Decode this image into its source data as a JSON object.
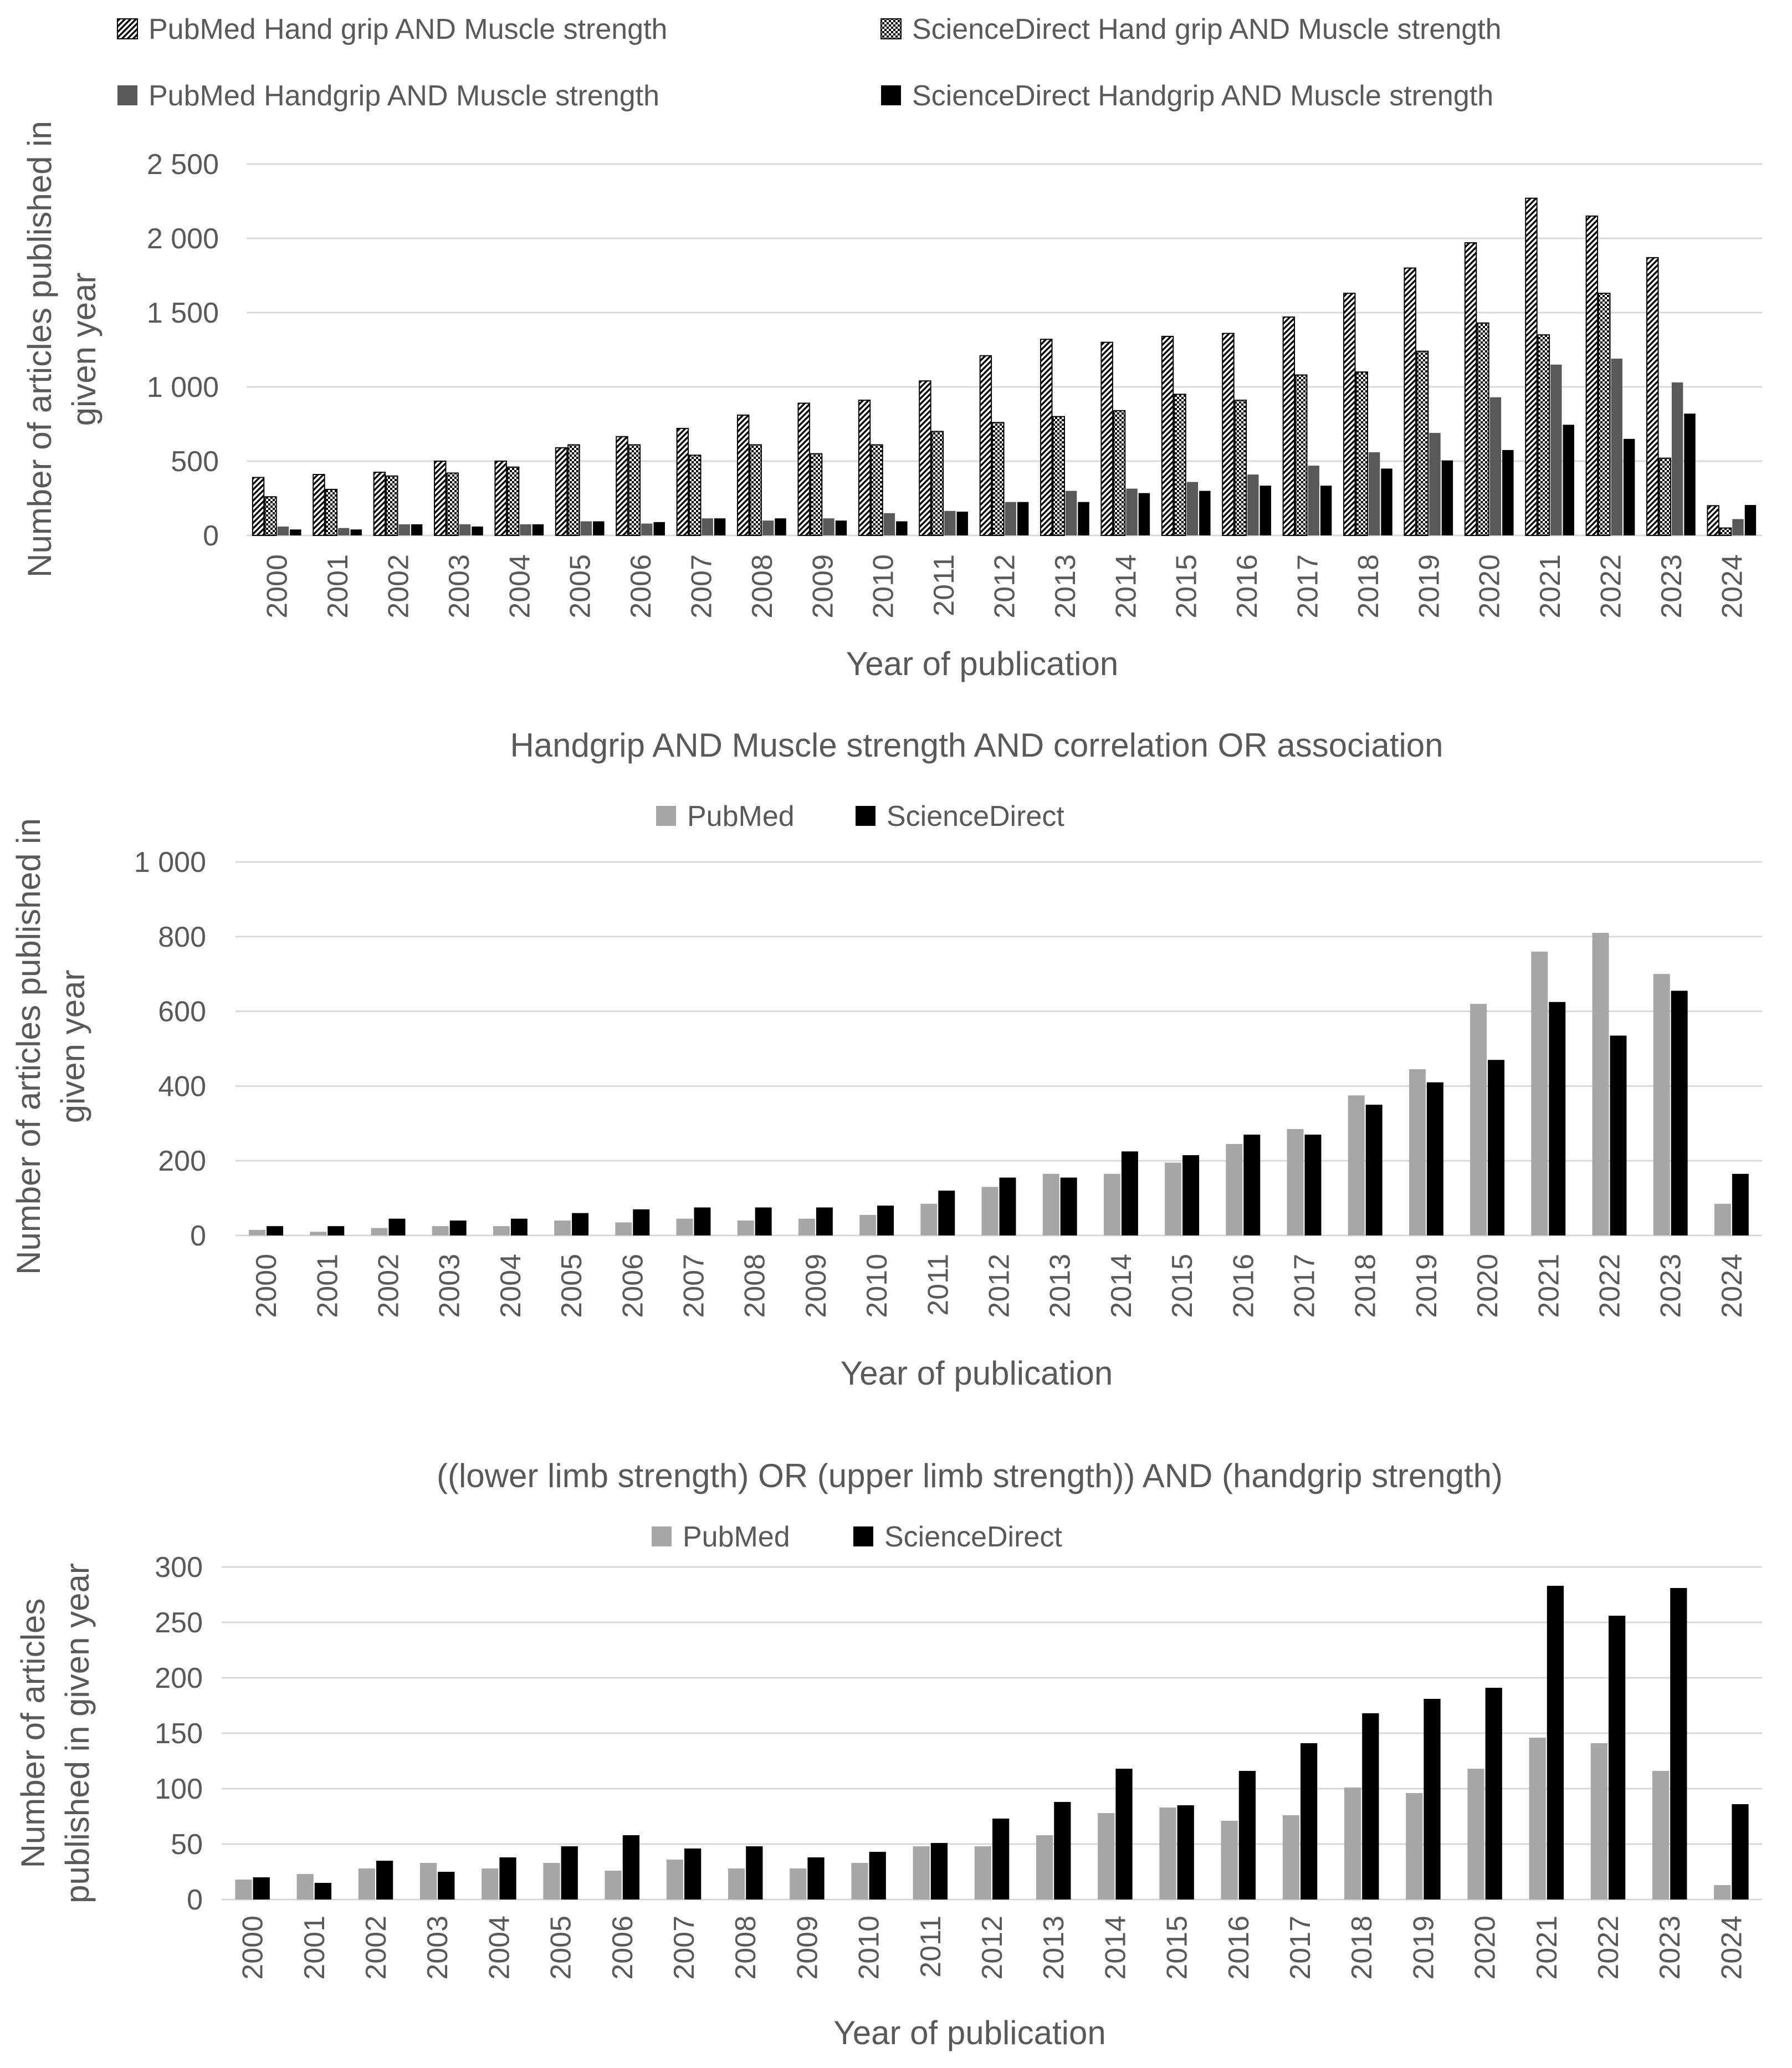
{
  "figure": {
    "colors": {
      "text": "#595959",
      "grid": "#d9d9d9",
      "pubmed_light": "#a6a6a6",
      "pubmed_dark": "#595959",
      "sciencedirect": "#000000"
    }
  },
  "chart_data": [
    {
      "type": "bar",
      "title": "",
      "xlabel": "Year of publication",
      "ylabel": "Number of articles published in given year",
      "ylabel_lines": [
        "Number of articles published in",
        "given year"
      ],
      "ylim": [
        0,
        2500
      ],
      "yticks": [
        0,
        500,
        1000,
        1500,
        2000,
        2500
      ],
      "ytick_labels": [
        "0",
        "500",
        "1 000",
        "1 500",
        "2 000",
        "2 500"
      ],
      "grid": true,
      "legend_position": "top",
      "categories": [
        "2000",
        "2001",
        "2002",
        "2003",
        "2004",
        "2005",
        "2006",
        "2007",
        "2008",
        "2009",
        "2010",
        "2011",
        "2012",
        "2013",
        "2014",
        "2015",
        "2016",
        "2017",
        "2018",
        "2019",
        "2020",
        "2021",
        "2022",
        "2023",
        "2024"
      ],
      "series": [
        {
          "name": "PubMed Hand grip AND Muscle strength",
          "pattern": "diagonal",
          "values": [
            390,
            410,
            425,
            500,
            500,
            590,
            665,
            720,
            810,
            890,
            910,
            1040,
            1210,
            1320,
            1300,
            1340,
            1360,
            1470,
            1630,
            1800,
            1970,
            2270,
            2150,
            1870,
            200
          ]
        },
        {
          "name": "ScienceDirect Hand grip AND Muscle strength",
          "pattern": "checker",
          "values": [
            260,
            310,
            400,
            420,
            460,
            610,
            610,
            540,
            610,
            550,
            610,
            700,
            760,
            800,
            840,
            950,
            910,
            1080,
            1100,
            1240,
            1430,
            1350,
            1630,
            520,
            50
          ]
        },
        {
          "name": "PubMed Handgrip AND Muscle strength",
          "pattern": "solid-gray",
          "values": [
            60,
            50,
            75,
            75,
            75,
            95,
            80,
            115,
            100,
            115,
            150,
            165,
            225,
            300,
            315,
            360,
            410,
            470,
            560,
            690,
            930,
            1150,
            1190,
            1030,
            110
          ]
        },
        {
          "name": "ScienceDirect Handgrip AND Muscle strength",
          "pattern": "solid-black",
          "values": [
            40,
            40,
            75,
            60,
            75,
            95,
            90,
            115,
            115,
            100,
            95,
            160,
            225,
            225,
            285,
            300,
            335,
            335,
            450,
            505,
            575,
            745,
            650,
            820,
            205
          ]
        }
      ]
    },
    {
      "type": "bar",
      "title": "Handgrip AND Muscle strength AND correlation OR association",
      "xlabel": "Year of publication",
      "ylabel": "Number of articles published in given year",
      "ylabel_lines": [
        "Number of articles published in",
        "given year"
      ],
      "ylim": [
        0,
        1000
      ],
      "yticks": [
        0,
        200,
        400,
        600,
        800,
        1000
      ],
      "ytick_labels": [
        "0",
        "200",
        "400",
        "600",
        "800",
        "1 000"
      ],
      "grid": true,
      "legend_position": "top",
      "categories": [
        "2000",
        "2001",
        "2002",
        "2003",
        "2004",
        "2005",
        "2006",
        "2007",
        "2008",
        "2009",
        "2010",
        "2011",
        "2012",
        "2013",
        "2014",
        "2015",
        "2016",
        "2017",
        "2018",
        "2019",
        "2020",
        "2021",
        "2022",
        "2023",
        "2024"
      ],
      "series": [
        {
          "name": "PubMed",
          "pattern": "solid-light",
          "values": [
            15,
            10,
            20,
            25,
            25,
            40,
            35,
            45,
            40,
            45,
            55,
            85,
            130,
            165,
            165,
            195,
            245,
            285,
            375,
            445,
            620,
            760,
            810,
            700,
            85
          ]
        },
        {
          "name": "ScienceDirect",
          "pattern": "solid-black",
          "values": [
            25,
            25,
            45,
            40,
            45,
            60,
            70,
            75,
            75,
            75,
            80,
            120,
            155,
            155,
            225,
            215,
            270,
            270,
            350,
            410,
            470,
            625,
            535,
            655,
            165
          ]
        }
      ]
    },
    {
      "type": "bar",
      "title": "((lower limb strength) OR (upper limb strength)) AND (handgrip strength)",
      "xlabel": "Year of publication",
      "ylabel": "Number of articles published in given year",
      "ylabel_lines": [
        "Number of articles",
        "published in given year"
      ],
      "ylim": [
        0,
        300
      ],
      "yticks": [
        0,
        50,
        100,
        150,
        200,
        250,
        300
      ],
      "ytick_labels": [
        "0",
        "50",
        "100",
        "150",
        "200",
        "250",
        "300"
      ],
      "grid": true,
      "legend_position": "top",
      "categories": [
        "2000",
        "2001",
        "2002",
        "2003",
        "2004",
        "2005",
        "2006",
        "2007",
        "2008",
        "2009",
        "2010",
        "2011",
        "2012",
        "2013",
        "2014",
        "2015",
        "2016",
        "2017",
        "2018",
        "2019",
        "2020",
        "2021",
        "2022",
        "2023",
        "2024"
      ],
      "series": [
        {
          "name": "PubMed",
          "pattern": "solid-light",
          "values": [
            18,
            23,
            28,
            33,
            28,
            33,
            26,
            36,
            28,
            28,
            33,
            48,
            48,
            58,
            78,
            83,
            71,
            76,
            101,
            96,
            118,
            146,
            141,
            116,
            13
          ]
        },
        {
          "name": "ScienceDirect",
          "pattern": "solid-black",
          "values": [
            20,
            15,
            35,
            25,
            38,
            48,
            58,
            46,
            48,
            38,
            43,
            51,
            73,
            88,
            118,
            85,
            116,
            141,
            168,
            181,
            191,
            283,
            256,
            281,
            86
          ]
        }
      ]
    }
  ]
}
